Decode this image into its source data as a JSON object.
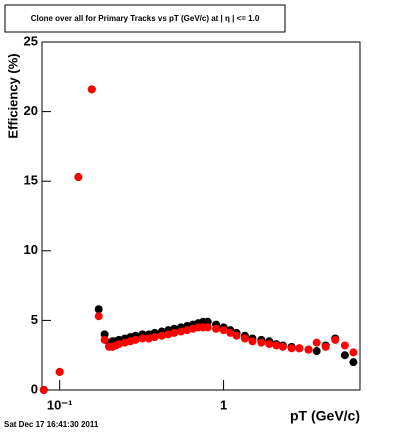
{
  "chart_data": {
    "type": "scatter",
    "title": "Clone  over all for Primary Tracks vs pT (GeV/c) at |  η | <= 1.0",
    "x_label": "pT (GeV/c)",
    "y_label": "Efficiency (%)",
    "footer": "Sat Dec 17 16:41:30 2011",
    "xlog": true,
    "xlim": [
      0.078,
      6.8
    ],
    "ylim": [
      0,
      25
    ],
    "xticks": [
      {
        "value": 0.1,
        "label": "10⁻¹"
      },
      1
    ],
    "yticks": [
      0,
      5,
      10,
      15,
      20,
      25
    ],
    "series": [
      {
        "name": "black",
        "color": "#000000",
        "x": [
          0.08,
          0.1,
          0.13,
          0.157,
          0.173,
          0.188,
          0.2,
          0.21,
          0.22,
          0.23,
          0.25,
          0.27,
          0.29,
          0.32,
          0.35,
          0.38,
          0.42,
          0.46,
          0.5,
          0.55,
          0.6,
          0.65,
          0.7,
          0.75,
          0.8,
          0.9,
          1.0,
          1.1,
          1.2,
          1.35,
          1.5,
          1.7,
          1.9,
          2.1,
          2.3,
          2.6,
          2.9,
          3.3,
          3.7,
          4.2,
          4.8,
          5.5,
          6.2
        ],
        "values": [
          0,
          1.3,
          15.3,
          21.6,
          5.8,
          4.0,
          3.4,
          3.5,
          3.5,
          3.6,
          3.7,
          3.8,
          3.9,
          4.0,
          4.0,
          4.1,
          4.2,
          4.3,
          4.4,
          4.5,
          4.6,
          4.7,
          4.8,
          4.9,
          4.9,
          4.7,
          4.5,
          4.3,
          4.1,
          3.9,
          3.7,
          3.6,
          3.5,
          3.3,
          3.2,
          3.1,
          3.0,
          2.9,
          2.8,
          3.2,
          3.7,
          2.5,
          2.0
        ]
      },
      {
        "name": "red",
        "color": "#ff0000",
        "x": [
          0.08,
          0.1,
          0.13,
          0.157,
          0.173,
          0.188,
          0.2,
          0.21,
          0.22,
          0.23,
          0.25,
          0.27,
          0.29,
          0.32,
          0.35,
          0.38,
          0.42,
          0.46,
          0.5,
          0.55,
          0.6,
          0.65,
          0.7,
          0.75,
          0.8,
          0.9,
          1.0,
          1.1,
          1.2,
          1.35,
          1.5,
          1.7,
          1.9,
          2.1,
          2.3,
          2.6,
          2.9,
          3.3,
          3.7,
          4.2,
          4.8,
          5.5,
          6.2
        ],
        "values": [
          0,
          1.3,
          15.3,
          21.6,
          5.3,
          3.6,
          3.1,
          3.1,
          3.2,
          3.3,
          3.4,
          3.5,
          3.6,
          3.7,
          3.7,
          3.8,
          3.9,
          4.0,
          4.1,
          4.2,
          4.3,
          4.4,
          4.5,
          4.5,
          4.5,
          4.4,
          4.3,
          4.1,
          3.9,
          3.7,
          3.5,
          3.4,
          3.3,
          3.2,
          3.1,
          3.0,
          3.0,
          2.9,
          3.4,
          3.1,
          3.6,
          3.2,
          2.7
        ]
      }
    ]
  }
}
